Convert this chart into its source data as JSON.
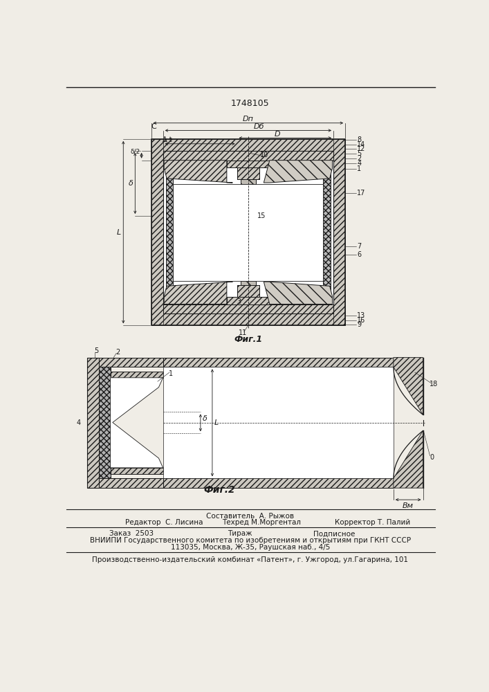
{
  "title_number": "1748105",
  "fig1_caption": "Фиг.1",
  "fig2_caption": "Фиг.2",
  "bg_color": "#f0ede6",
  "line_color": "#1a1a1a",
  "footer_sestavitel": "Составитель  А. Рыжов",
  "footer_redaktor": "Редактор  С. Лисина",
  "footer_tehred": "Техред М.Моргентал",
  "footer_korrektor": "Корректор Т. Палий",
  "footer_zakaz": "Заказ  2503",
  "footer_tirazh": "Тираж",
  "footer_podpisnoe": "Подписное",
  "footer_vniipи": "ВНИИПИ Государственного комитета по изобретениям и открытиям при ГКНТ СССР",
  "footer_addr": "113035, Москва, Ж-35, Раушская наб., 4/5",
  "footer_patent": "Производственно-издательский комбинат «Патент», г. Ужгород, ул.Гагарина, 101",
  "labels_fig1": {
    "Dp": "Dп",
    "Db": "Dб",
    "D": "D",
    "C": "C",
    "At": "Δ t",
    "delta": "δ",
    "delta2": "δ/2",
    "L": "L",
    "n10": "10",
    "n8": "8",
    "n14": "14",
    "n12": "12",
    "n5": "5",
    "n2": "2",
    "n4": "4",
    "n1": "1",
    "n17": "17",
    "n7": "7",
    "n6": "6",
    "n15": "15",
    "n3": "3",
    "n13": "13",
    "n16": "16",
    "n9": "9",
    "n11": "11"
  },
  "labels_fig2": {
    "n5": "5",
    "n2": "2",
    "n1": "1",
    "n4": "4",
    "n18": "18",
    "n0": "0",
    "delta": "δ",
    "L": "L",
    "Bm": "Bм"
  }
}
